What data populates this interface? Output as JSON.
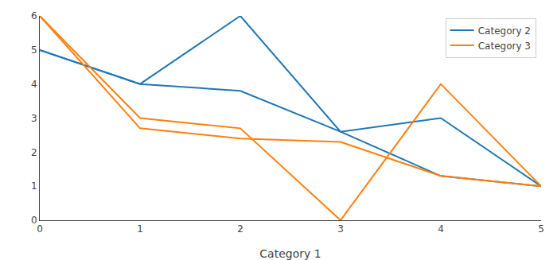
{
  "chart_data": {
    "type": "line",
    "x": [
      0,
      1,
      2,
      3,
      4,
      5
    ],
    "xlabel": "Category 1",
    "series": [
      {
        "name": "Category 2",
        "color": "#1f77b4",
        "values": [
          5,
          4.0,
          6,
          2.6,
          3.0,
          1
        ]
      },
      {
        "color": "#1f77b4",
        "values": [
          5,
          4.0,
          3.8,
          2.6,
          1.3,
          1
        ]
      },
      {
        "name": "Category 3",
        "color": "#ff7f0e",
        "values": [
          6,
          3.0,
          2.7,
          0,
          4,
          1
        ]
      },
      {
        "color": "#ff7f0e",
        "values": [
          6,
          2.7,
          2.4,
          2.3,
          1.3,
          1
        ]
      }
    ],
    "xlim": [
      0,
      5
    ],
    "xticks": [
      0,
      1,
      2,
      3,
      4,
      5
    ],
    "ylim": [
      0,
      6
    ],
    "yticks": [
      0,
      1,
      2,
      3,
      4,
      5,
      6
    ],
    "grid": false,
    "legend": "upper right"
  }
}
